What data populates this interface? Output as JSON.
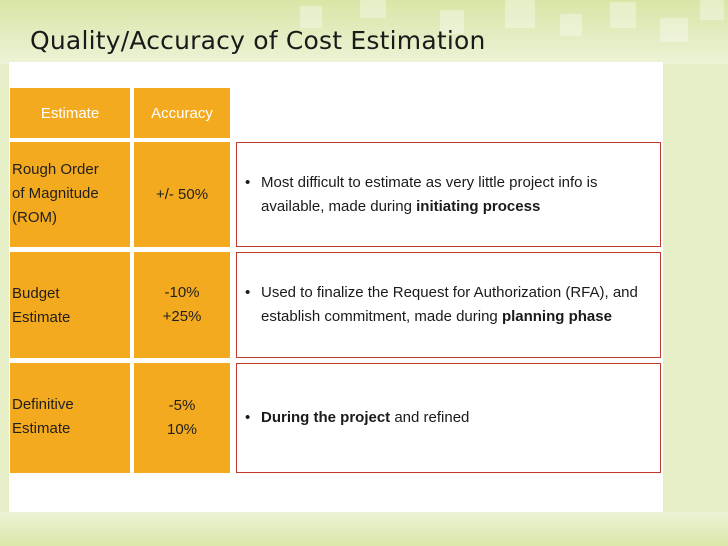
{
  "slide": {
    "title": "Quality/Accuracy of Cost Estimation",
    "colors": {
      "accent": "#f4aa1f",
      "border": "#c0392b",
      "background": "#e7efc9"
    }
  },
  "table": {
    "headers": {
      "estimate": "Estimate",
      "accuracy": "Accuracy"
    },
    "rows": [
      {
        "estimate": [
          "Rough Order",
          "of Magnitude",
          "(ROM)"
        ],
        "accuracy": [
          "+/- 50%"
        ],
        "description": {
          "before": "Most difficult to estimate as very little project info is available, made during ",
          "bold": "initiating process",
          "after": ""
        }
      },
      {
        "estimate": [
          "Budget",
          "Estimate"
        ],
        "accuracy": [
          "-10%",
          "+25%"
        ],
        "description": {
          "before": "Used to finalize the Request for Authorization (RFA), and establish commitment, made during ",
          "bold": "planning phase",
          "after": ""
        }
      },
      {
        "estimate": [
          "Definitive",
          "Estimate"
        ],
        "accuracy": [
          "-5%",
          "10%"
        ],
        "description": {
          "before": "",
          "bold": "During the project",
          "after": " and refined"
        }
      }
    ]
  }
}
